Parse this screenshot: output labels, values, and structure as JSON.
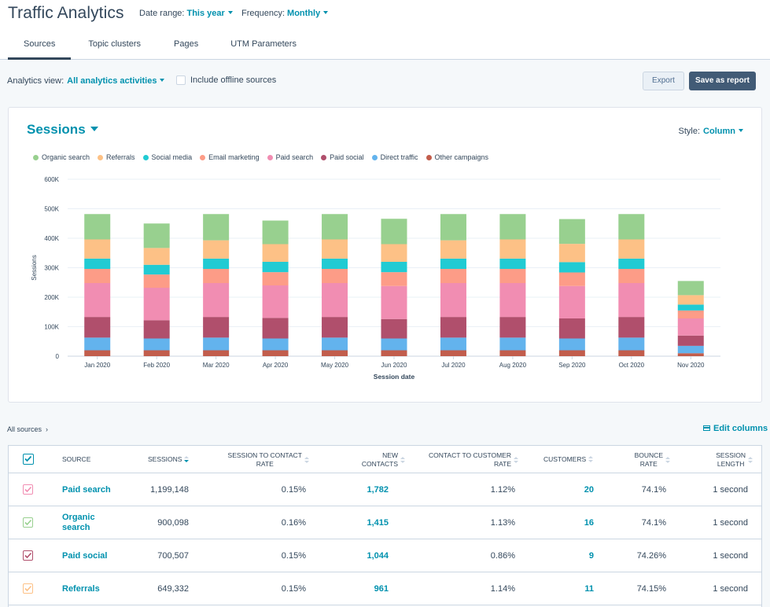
{
  "header": {
    "title": "Traffic Analytics",
    "date_range_label": "Date range:",
    "date_range_value": "This year",
    "frequency_label": "Frequency:",
    "frequency_value": "Monthly"
  },
  "tabs": [
    "Sources",
    "Topic clusters",
    "Pages",
    "UTM Parameters"
  ],
  "toolbar": {
    "analytics_view_label": "Analytics view:",
    "analytics_view_value": "All analytics activities",
    "offline_label": "Include offline sources",
    "export_label": "Export",
    "save_label": "Save as report"
  },
  "chart_card": {
    "title": "Sessions",
    "style_label": "Style:",
    "style_value": "Column"
  },
  "chart_data": {
    "type": "bar",
    "stacked": true,
    "xlabel": "Session date",
    "ylabel": "Sessions",
    "ylim": [
      0,
      600000
    ],
    "yticks": [
      0,
      100000,
      200000,
      300000,
      400000,
      500000,
      600000
    ],
    "ytick_labels": [
      "0",
      "100K",
      "200K",
      "300K",
      "400K",
      "500K",
      "600K"
    ],
    "categories": [
      "Jan 2020",
      "Feb 2020",
      "Mar 2020",
      "Apr 2020",
      "May 2020",
      "Jun 2020",
      "Jul 2020",
      "Aug 2020",
      "Sep 2020",
      "Oct 2020",
      "Nov 2020"
    ],
    "series": [
      {
        "name": "Other campaigns",
        "color": "#c25d4c",
        "values": [
          20000,
          20000,
          20000,
          20000,
          20000,
          20000,
          20000,
          20000,
          20000,
          20000,
          10000
        ]
      },
      {
        "name": "Direct traffic",
        "color": "#63b3ed",
        "values": [
          43000,
          40000,
          43000,
          40000,
          43000,
          40000,
          43000,
          43000,
          40000,
          43000,
          25000
        ]
      },
      {
        "name": "Paid social",
        "color": "#b04f6c",
        "values": [
          70000,
          62000,
          70000,
          70000,
          70000,
          66000,
          70000,
          70000,
          68000,
          70000,
          35000
        ]
      },
      {
        "name": "Paid search",
        "color": "#f18db2",
        "values": [
          115000,
          110000,
          115000,
          110000,
          115000,
          112000,
          115000,
          115000,
          110000,
          115000,
          58000
        ]
      },
      {
        "name": "Email marketing",
        "color": "#fd9c87",
        "values": [
          48000,
          45000,
          48000,
          45000,
          48000,
          47000,
          48000,
          48000,
          46000,
          48000,
          27000
        ]
      },
      {
        "name": "Social media",
        "color": "#21cbd3",
        "values": [
          35000,
          33000,
          35000,
          35000,
          35000,
          35000,
          35000,
          35000,
          35000,
          35000,
          20000
        ]
      },
      {
        "name": "Referrals",
        "color": "#fdc186",
        "values": [
          65000,
          57000,
          62000,
          60000,
          65000,
          60000,
          62000,
          65000,
          62000,
          65000,
          32000
        ]
      },
      {
        "name": "Organic search",
        "color": "#98d08f",
        "values": [
          86000,
          83000,
          89000,
          80000,
          86000,
          86000,
          89000,
          86000,
          84000,
          86000,
          48000
        ]
      }
    ]
  },
  "legend": [
    {
      "name": "Organic search",
      "color": "#98d08f"
    },
    {
      "name": "Referrals",
      "color": "#fdc186"
    },
    {
      "name": "Social media",
      "color": "#21cbd3"
    },
    {
      "name": "Email marketing",
      "color": "#fd9c87"
    },
    {
      "name": "Paid search",
      "color": "#f18db2"
    },
    {
      "name": "Paid social",
      "color": "#b04f6c"
    },
    {
      "name": "Direct traffic",
      "color": "#63b3ed"
    },
    {
      "name": "Other campaigns",
      "color": "#c25d4c"
    }
  ],
  "breadcrumb": "All sources",
  "edit_columns_label": "Edit columns",
  "table": {
    "columns": {
      "source": "SOURCE",
      "sessions": "SESSIONS",
      "session_to_contact_1": "SESSION TO CONTACT",
      "session_to_contact_2": "RATE",
      "new_contacts_1": "NEW",
      "new_contacts_2": "CONTACTS",
      "contact_to_customer_1": "CONTACT TO CUSTOMER",
      "contact_to_customer_2": "RATE",
      "customers": "CUSTOMERS",
      "bounce_1": "BOUNCE",
      "bounce_2": "RATE",
      "session_length_1": "SESSION",
      "session_length_2": "LENGTH"
    },
    "rows": [
      {
        "source": "Paid search",
        "source_2": "",
        "color": "#f18db2",
        "sessions": "1,199,148",
        "s2c": "0.15%",
        "new_contacts": "1,782",
        "c2c": "1.12%",
        "customers": "20",
        "bounce": "74.1%",
        "length": "1 second"
      },
      {
        "source": "Organic",
        "source_2": "search",
        "color": "#98d08f",
        "sessions": "900,098",
        "s2c": "0.16%",
        "new_contacts": "1,415",
        "c2c": "1.13%",
        "customers": "16",
        "bounce": "74.1%",
        "length": "1 second"
      },
      {
        "source": "Paid social",
        "source_2": "",
        "color": "#b04f6c",
        "sessions": "700,507",
        "s2c": "0.15%",
        "new_contacts": "1,044",
        "c2c": "0.86%",
        "customers": "9",
        "bounce": "74.26%",
        "length": "1 second"
      },
      {
        "source": "Referrals",
        "source_2": "",
        "color": "#fdc186",
        "sessions": "649,332",
        "s2c": "0.15%",
        "new_contacts": "961",
        "c2c": "1.14%",
        "customers": "11",
        "bounce": "74.15%",
        "length": "1 second"
      }
    ]
  }
}
